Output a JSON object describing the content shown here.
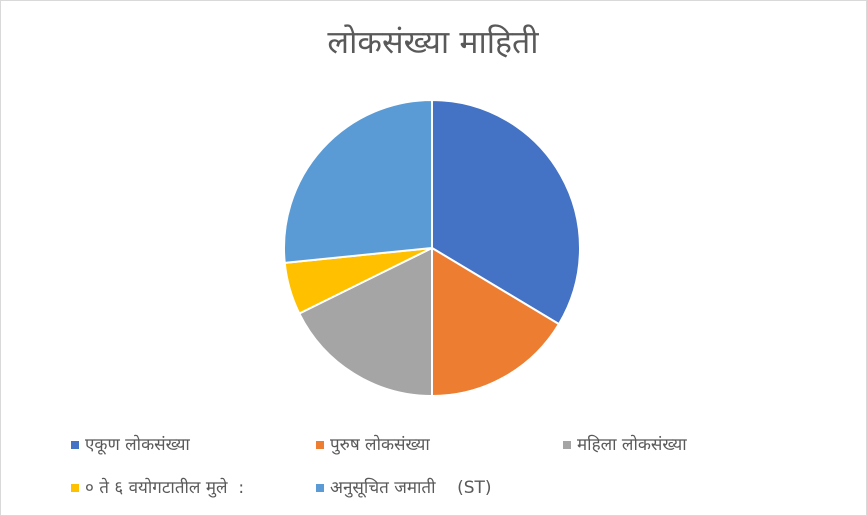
{
  "chart_data": {
    "type": "pie",
    "title": "लोकसंख्या माहिती",
    "categories": [
      "एकूण लोकसंख्या",
      "पुरुष लोकसंख्या",
      "महिला लोकसंख्या",
      "० ते ६ वयोगटातील मुले  :",
      "अनुसूचित जमाती    (ST)"
    ],
    "values": [
      33.6,
      16.4,
      17.7,
      5.7,
      26.6
    ],
    "colors": [
      "#4472c4",
      "#ed7d31",
      "#a5a5a5",
      "#ffc000",
      "#5b9bd5"
    ],
    "legend": "bottom"
  }
}
